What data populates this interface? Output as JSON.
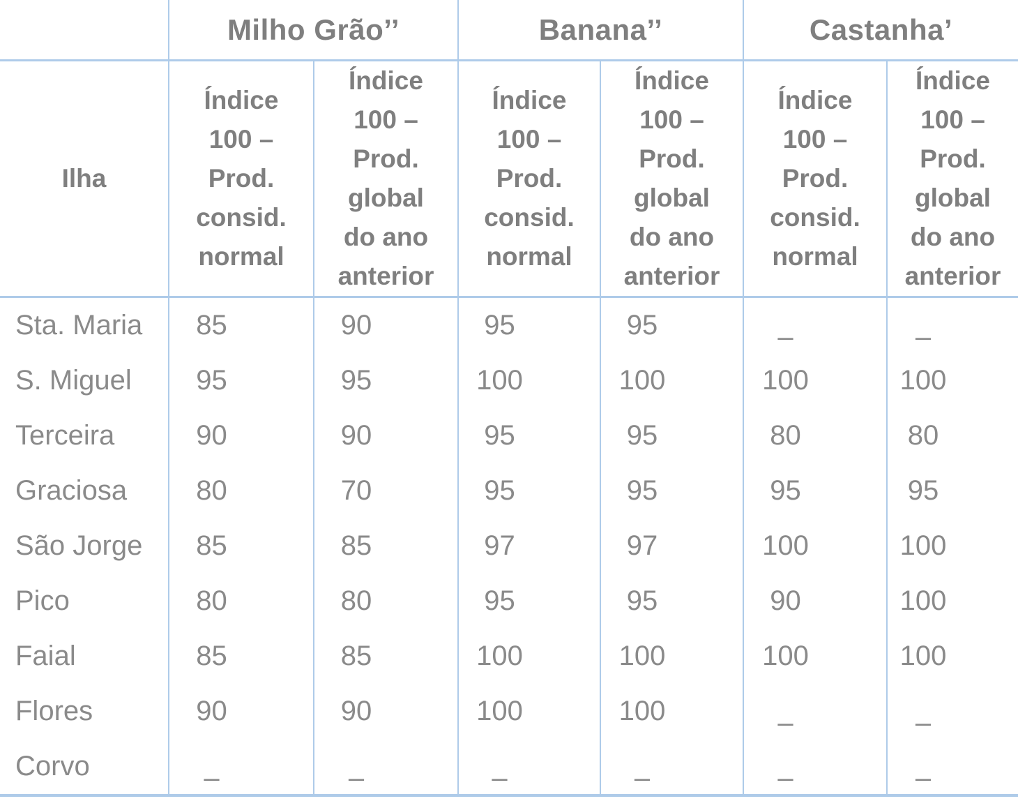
{
  "chart_data": {
    "type": "table",
    "title": "",
    "row_header": "Ilha",
    "missing_value_marker": "–",
    "column_groups": [
      {
        "label": "Milho Grão’’",
        "columns": [
          "Índice 100 – Prod. consid. normal",
          "Índice 100 – Prod. global do ano anterior"
        ]
      },
      {
        "label": "Banana’’",
        "columns": [
          "Índice 100 – Prod. consid. normal",
          "Índice 100 – Prod. global do ano anterior"
        ]
      },
      {
        "label": "Castanha’",
        "columns": [
          "Índice 100 – Prod. consid. normal",
          "Índice 100 – Prod. global do ano anterior"
        ]
      }
    ],
    "rows": [
      {
        "island": "Sta. Maria",
        "values": [
          "85",
          "90",
          "95",
          "95",
          "–",
          "–"
        ]
      },
      {
        "island": "S. Miguel",
        "values": [
          "95",
          "95",
          "100",
          "100",
          "100",
          "100"
        ]
      },
      {
        "island": "Terceira",
        "values": [
          "90",
          "90",
          "95",
          "95",
          "80",
          "80"
        ]
      },
      {
        "island": "Graciosa",
        "values": [
          "80",
          "70",
          "95",
          "95",
          "95",
          "95"
        ]
      },
      {
        "island": "São Jorge",
        "values": [
          "85",
          "85",
          "97",
          "97",
          "100",
          "100"
        ]
      },
      {
        "island": "Pico",
        "values": [
          "80",
          "80",
          "95",
          "95",
          "90",
          "100"
        ]
      },
      {
        "island": "Faial",
        "values": [
          "85",
          "85",
          "100",
          "100",
          "100",
          "100"
        ]
      },
      {
        "island": "Flores",
        "values": [
          "90",
          "90",
          "100",
          "100",
          "–",
          "–"
        ]
      },
      {
        "island": "Corvo",
        "values": [
          "–",
          "–",
          "–",
          "–",
          "–",
          "–"
        ]
      }
    ]
  },
  "colors": {
    "border": "#aecbe9",
    "text": "#8a8a8a",
    "header_text": "#7f7f7f",
    "background": "#ffffff"
  }
}
